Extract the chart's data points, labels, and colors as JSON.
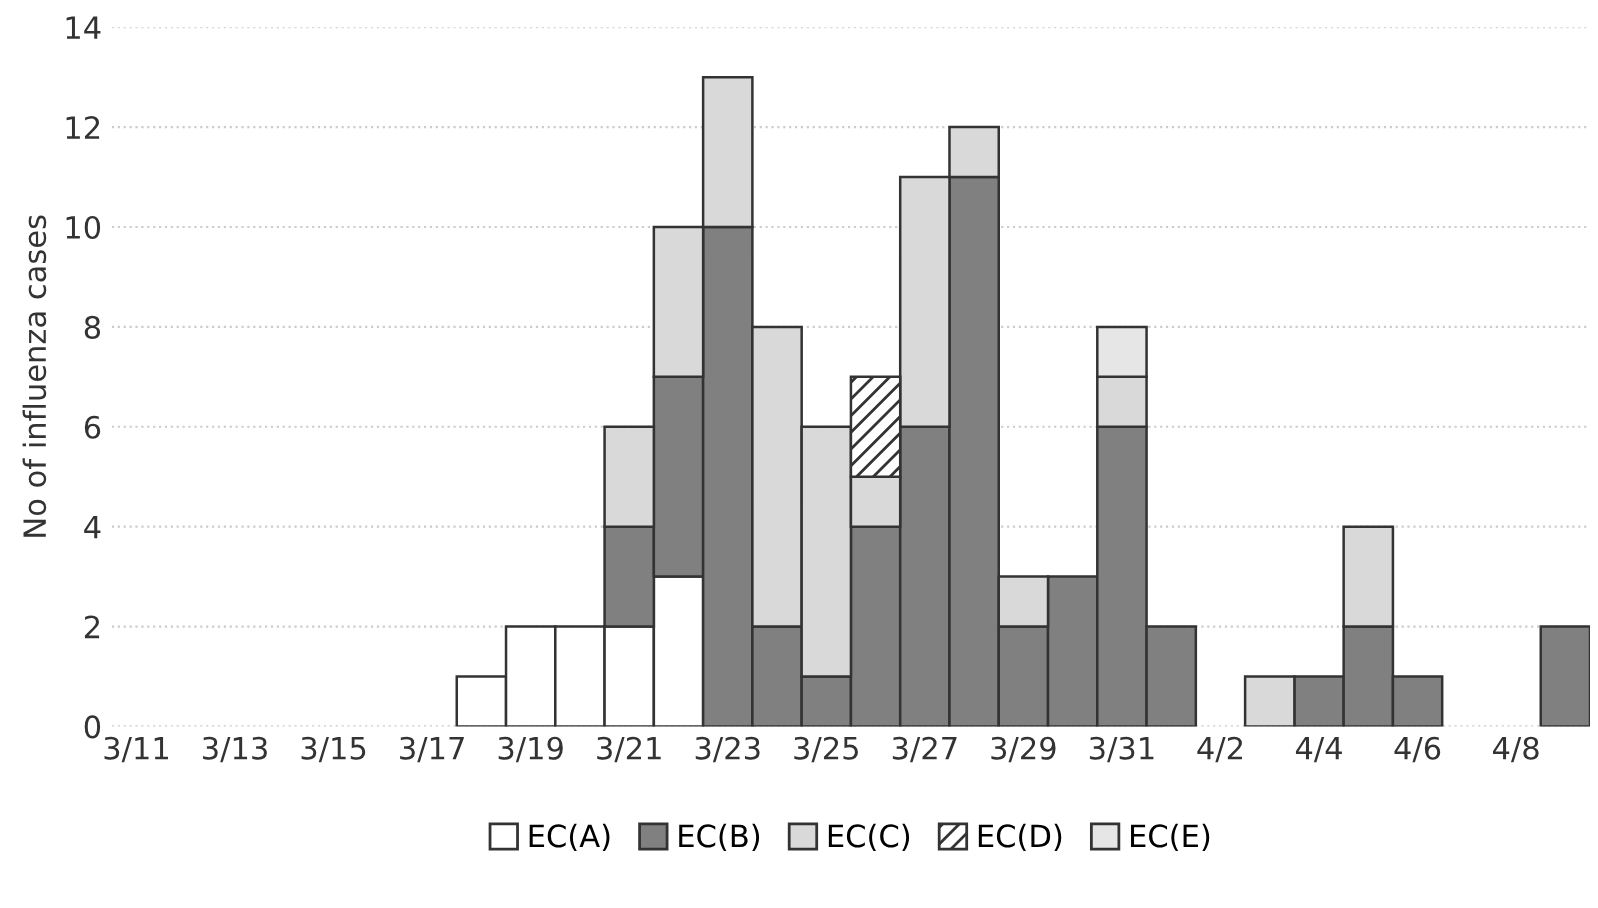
{
  "chart_data": {
    "type": "bar",
    "stacked": true,
    "ylabel": "No of influenza cases",
    "categories": [
      "3/11",
      null,
      "3/13",
      null,
      "3/15",
      null,
      "3/17",
      null,
      "3/19",
      null,
      "3/21",
      null,
      "3/23",
      null,
      "3/25",
      null,
      "3/27",
      null,
      "3/29",
      null,
      "3/31",
      null,
      "4/2",
      null,
      "4/4",
      null,
      "4/6",
      null,
      "4/8",
      null
    ],
    "series": [
      {
        "name": "EC(A)",
        "color": "#ffffff",
        "values": [
          null,
          null,
          null,
          null,
          null,
          null,
          null,
          1,
          2,
          2,
          2,
          3,
          null,
          null,
          null,
          null,
          null,
          null,
          null,
          null,
          null,
          null,
          null,
          null,
          null,
          null,
          null,
          null,
          null,
          null
        ]
      },
      {
        "name": "EC(B)",
        "color": "#808080",
        "values": [
          null,
          null,
          null,
          null,
          null,
          null,
          null,
          null,
          null,
          null,
          2,
          4,
          10,
          2,
          1,
          4,
          6,
          11,
          2,
          3,
          6,
          2,
          null,
          null,
          1,
          2,
          1,
          null,
          null,
          2
        ]
      },
      {
        "name": "EC(C)",
        "color": "#d9d9d9",
        "values": [
          null,
          null,
          null,
          null,
          null,
          null,
          null,
          null,
          null,
          null,
          2,
          3,
          3,
          6,
          5,
          1,
          5,
          1,
          1,
          null,
          1,
          null,
          null,
          1,
          null,
          2,
          null,
          null,
          null,
          null
        ]
      },
      {
        "name": "EC(D)",
        "color": "#333333",
        "values": [
          null,
          null,
          null,
          null,
          null,
          null,
          null,
          null,
          null,
          null,
          null,
          null,
          null,
          null,
          null,
          2,
          null,
          null,
          null,
          null,
          null,
          null,
          null,
          null,
          null,
          null,
          null,
          null,
          null,
          null
        ]
      },
      {
        "name": "EC(E)",
        "color": "#e6e6e6",
        "values": [
          null,
          null,
          null,
          null,
          null,
          null,
          null,
          null,
          null,
          null,
          null,
          null,
          null,
          null,
          null,
          null,
          null,
          null,
          null,
          null,
          1,
          null,
          null,
          null,
          null,
          null,
          null,
          null,
          null,
          null
        ]
      }
    ],
    "ylim": [
      0,
      14
    ],
    "yticks": [
      0,
      2,
      4,
      6,
      8,
      10,
      12,
      14
    ],
    "grid": "y",
    "legend": "bottom"
  }
}
